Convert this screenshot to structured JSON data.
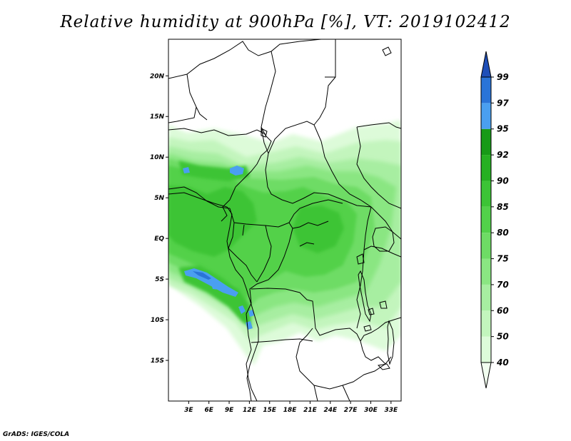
{
  "title": "Relative humidity at 900hPa [%], VT: 2019102412",
  "credit": "GrADS: IGES/COLA",
  "map": {
    "lat_ticks": [
      "20N",
      "15N",
      "10N",
      "5N",
      "EQ",
      "5S",
      "10S",
      "15S"
    ],
    "lon_ticks": [
      "3E",
      "6E",
      "9E",
      "12E",
      "15E",
      "18E",
      "21E",
      "24E",
      "27E",
      "30E",
      "33E"
    ],
    "lon_range": [
      0,
      34.5
    ],
    "lat_range": [
      -20,
      24.5
    ]
  },
  "colorbar": {
    "levels": [
      "40",
      "50",
      "60",
      "70",
      "75",
      "80",
      "85",
      "90",
      "92",
      "95",
      "97",
      "99"
    ],
    "colors": [
      "#f2fff0",
      "#ddfbd9",
      "#c3f5bd",
      "#a7eea1",
      "#8ae682",
      "#6edc65",
      "#52d14a",
      "#3cc436",
      "#26b022",
      "#179a17",
      "#4a9ff0",
      "#2a74d8",
      "#1f4fb8"
    ]
  }
}
